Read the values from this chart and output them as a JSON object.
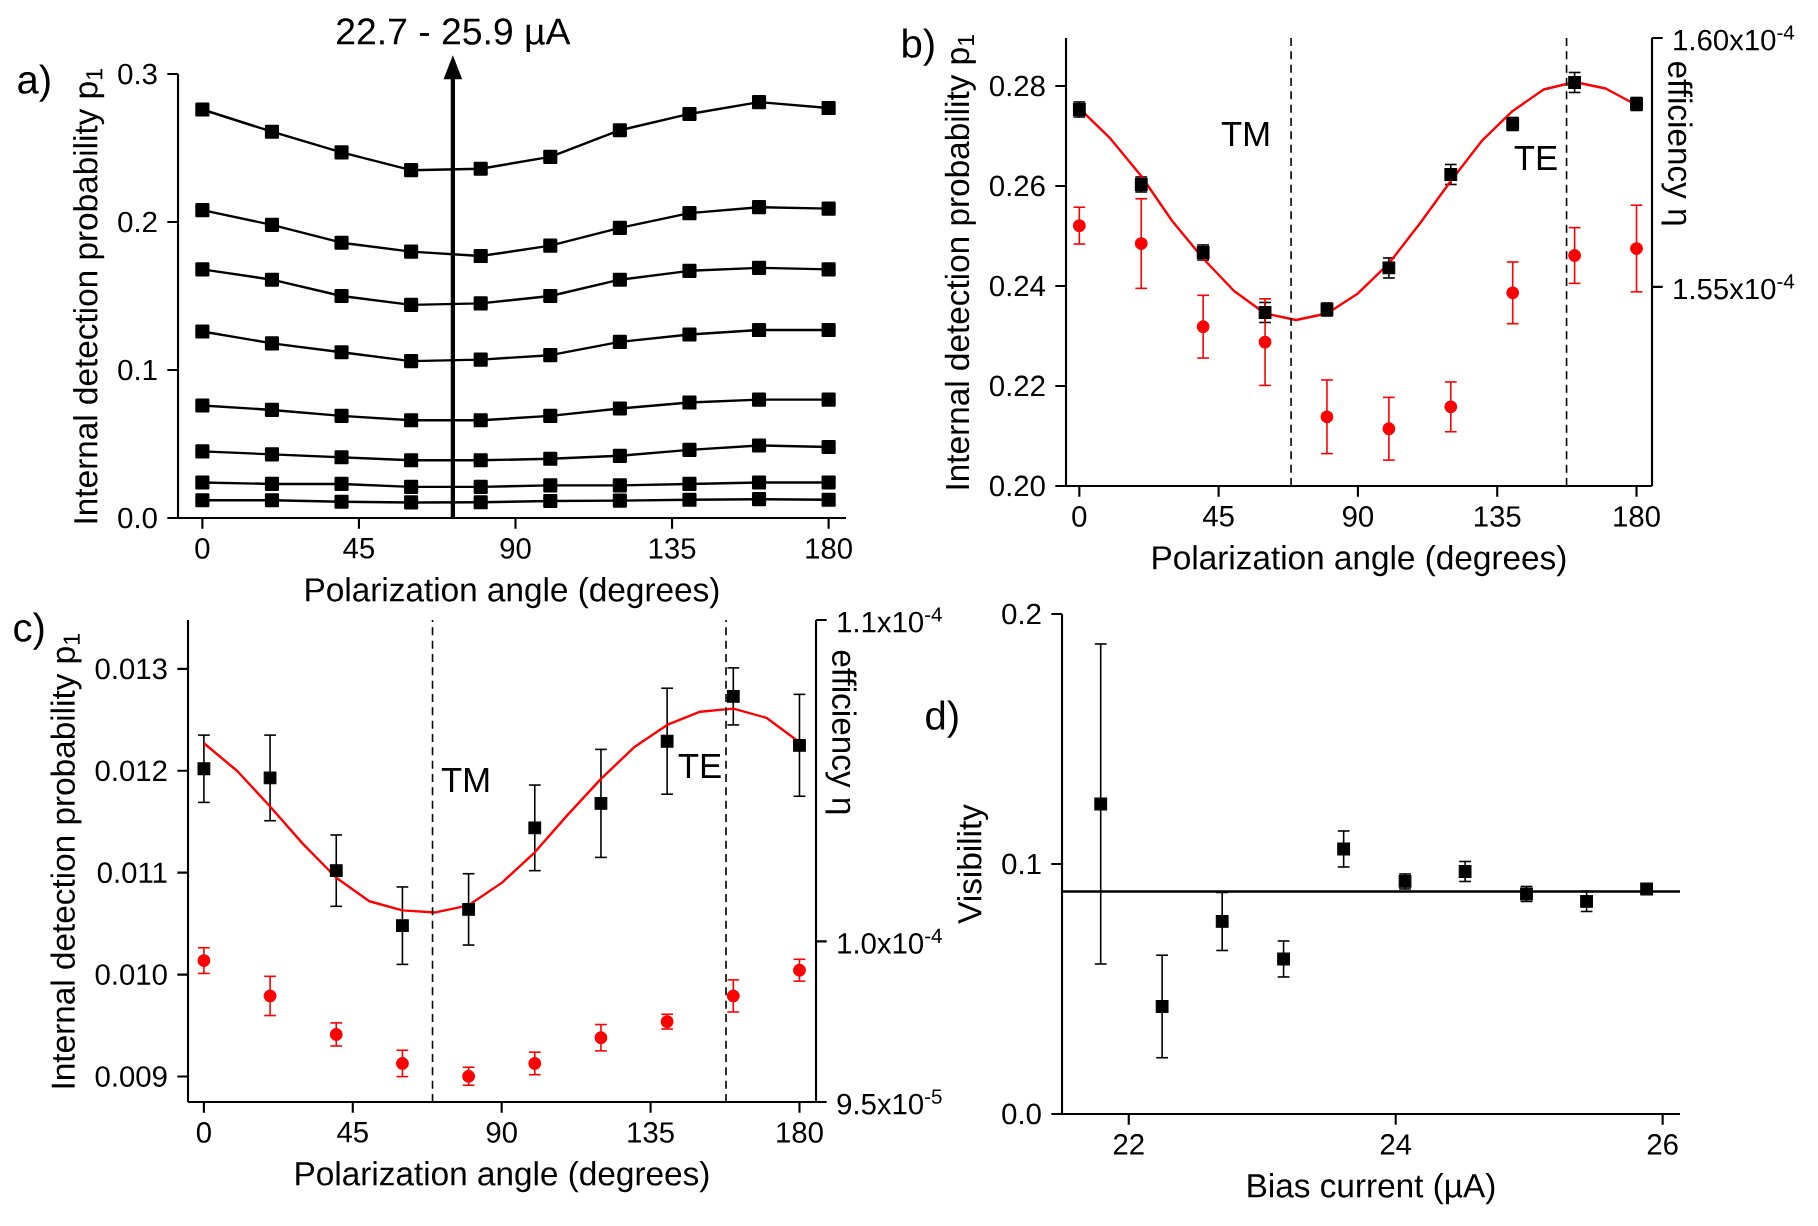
{
  "chart_data": [
    {
      "type": "line",
      "xlabel": "Polarization angle (degrees)",
      "ylabel": "Internal detection probability p$_{1}$",
      "x": [
        0,
        20,
        40,
        60,
        80,
        100,
        120,
        140,
        160,
        180
      ],
      "marker": "square",
      "xlim": [
        -7,
        185
      ],
      "ylim": [
        0,
        0.3
      ],
      "xticks": [
        0,
        45,
        90,
        135,
        180
      ],
      "yticks": [
        {
          "value": 0,
          "label": "0.0"
        },
        0.1,
        0.2,
        0.3
      ],
      "series": [
        {
          "color": "#000000",
          "values": [
            0.276,
            0.261,
            0.247,
            0.235,
            0.236,
            0.244,
            0.262,
            0.273,
            0.281,
            0.277
          ]
        },
        {
          "color": "#000000",
          "values": [
            0.208,
            0.198,
            0.186,
            0.18,
            0.177,
            0.184,
            0.196,
            0.206,
            0.21,
            0.209
          ]
        },
        {
          "color": "#000000",
          "values": [
            0.168,
            0.161,
            0.15,
            0.144,
            0.145,
            0.15,
            0.161,
            0.167,
            0.169,
            0.168
          ]
        },
        {
          "color": "#000000",
          "values": [
            0.126,
            0.118,
            0.112,
            0.106,
            0.107,
            0.11,
            0.119,
            0.124,
            0.127,
            0.127
          ]
        },
        {
          "color": "#000000",
          "values": [
            0.076,
            0.073,
            0.069,
            0.066,
            0.066,
            0.069,
            0.074,
            0.078,
            0.08,
            0.08
          ]
        },
        {
          "color": "#000000",
          "values": [
            0.045,
            0.043,
            0.041,
            0.039,
            0.039,
            0.04,
            0.042,
            0.046,
            0.049,
            0.048
          ]
        },
        {
          "color": "#000000",
          "values": [
            0.024,
            0.023,
            0.023,
            0.021,
            0.021,
            0.022,
            0.022,
            0.023,
            0.024,
            0.024
          ]
        },
        {
          "color": "#000000",
          "values": [
            0.012,
            0.012,
            0.011,
            0.0105,
            0.0106,
            0.0115,
            0.0117,
            0.0123,
            0.0127,
            0.0123
          ]
        }
      ],
      "ref_lines": [
        {
          "axis": "x",
          "value": 72,
          "label": "22.7 - 25.9 µA"
        }
      ],
      "annotations": [
        "a)"
      ]
    },
    {
      "type": "scatter",
      "xlabel": "Polarization angle (degrees)",
      "ylabel": "Internal detection probability p$_{1}$",
      "y2label": "efficiency η",
      "x": [
        0,
        20,
        40,
        60,
        80,
        100,
        120,
        140,
        160,
        180
      ],
      "xlim": [
        -4.3,
        185
      ],
      "ylim": [
        0.2,
        0.2896
      ],
      "y2lim": [
        0.000151,
        0.00016
      ],
      "xticks": [
        0,
        45,
        90,
        135,
        180
      ],
      "yticks": [
        {
          "value": 0.2,
          "label": "0.20"
        },
        0.22,
        0.24,
        0.26,
        0.28
      ],
      "y2ticks": [
        {
          "value": 0.000155,
          "label": "1.55x10$^{-4}$"
        },
        {
          "value": 0.00016,
          "label": "1.60x10$^{-4}$"
        }
      ],
      "series": [
        {
          "type": "scatter",
          "marker": "square",
          "color": "#000000",
          "values": [
            0.2753,
            0.2603,
            0.2467,
            0.2347,
            0.2353,
            0.2436,
            0.2623,
            0.2724,
            0.2807,
            0.2764
          ],
          "errors": [
            0.0015,
            0.0015,
            0.0015,
            0.002,
            0.0013,
            0.002,
            0.002,
            0.0013,
            0.002,
            0.0013
          ]
        },
        {
          "type": "line",
          "marker": "none",
          "color": "#ff0000",
          "x": [
            0,
            10,
            20,
            30,
            40,
            50,
            60,
            70,
            80,
            90,
            100,
            110,
            120,
            130,
            140,
            150,
            160,
            170,
            180
          ],
          "values": [
            0.2755,
            0.2695,
            0.262,
            0.253,
            0.2455,
            0.239,
            0.2345,
            0.2332,
            0.2345,
            0.2385,
            0.2445,
            0.2525,
            0.261,
            0.269,
            0.275,
            0.2793,
            0.2808,
            0.2795,
            0.2762
          ]
        },
        {
          "type": "scatter",
          "marker": "circle",
          "axis": "y2",
          "color": "#ff0000",
          "values": [
            0.00015623,
            0.00015587,
            0.0001542,
            0.00015389,
            0.00015239,
            0.00015215,
            0.00015259,
            0.00015488,
            0.00015563,
            0.00015577
          ],
          "errors": [
            3.7e-07,
            9e-07,
            6.3e-07,
            8.7e-07,
            7.4e-07,
            6.3e-07,
            5e-07,
            6.2e-07,
            5.6e-07,
            8.7e-07
          ]
        }
      ],
      "ref_lines": [
        {
          "axis": "x",
          "value": 68.4,
          "line_style": "dashed"
        },
        {
          "axis": "x",
          "value": 157.4,
          "line_style": "dashed"
        }
      ],
      "annotations": [
        "b)",
        "TM",
        "TE"
      ]
    },
    {
      "type": "scatter",
      "xlabel": "Polarization angle (degrees)",
      "ylabel": "Internal detection probability p$_{1}$",
      "y2label": "efficiency η",
      "x": [
        0,
        20,
        40,
        60,
        80,
        100,
        120,
        140,
        160,
        180
      ],
      "xlim": [
        -4.8,
        185
      ],
      "ylim": [
        0.00875,
        0.01348
      ],
      "y2lim": [
        9.5e-05,
        0.00011
      ],
      "xticks": [
        0,
        45,
        90,
        135,
        180
      ],
      "yticks": [
        0.009,
        {
          "value": 0.01,
          "label": "0.010"
        },
        0.011,
        0.012,
        0.013
      ],
      "y2ticks": [
        {
          "value": 9.5e-05,
          "label": "9.5x10$^{-5}$"
        },
        {
          "value": 0.0001,
          "label": "1.0x10$^{-4}$"
        },
        {
          "value": 0.00011,
          "label": "1.1x10$^{-4}$"
        }
      ],
      "series": [
        {
          "type": "scatter",
          "marker": "square",
          "color": "#000000",
          "values": [
            0.01202,
            0.01193,
            0.01102,
            0.01048,
            0.01064,
            0.01144,
            0.01168,
            0.01229,
            0.01273,
            0.01225
          ],
          "errors": [
            0.00033,
            0.00042,
            0.00035,
            0.00038,
            0.00035,
            0.00042,
            0.00053,
            0.00052,
            0.00028,
            0.0005
          ]
        },
        {
          "type": "line",
          "marker": "none",
          "color": "#ff0000",
          "x": [
            0,
            10,
            20,
            30,
            40,
            50,
            60,
            70,
            80,
            90,
            100,
            110,
            120,
            130,
            140,
            150,
            160,
            170,
            180
          ],
          "values": [
            0.01227,
            0.012,
            0.01165,
            0.01128,
            0.01095,
            0.01072,
            0.01063,
            0.01061,
            0.01068,
            0.0109,
            0.0112,
            0.01157,
            0.01192,
            0.01223,
            0.01245,
            0.01258,
            0.01261,
            0.01252,
            0.01228
          ]
        },
        {
          "type": "scatter",
          "marker": "circle",
          "axis": "y2",
          "color": "#ff0000",
          "values": [
            9.94e-05,
            9.83e-05,
            9.71e-05,
            9.62e-05,
            9.58e-05,
            9.62e-05,
            9.7e-05,
            9.75e-05,
            9.83e-05,
            9.91e-05
          ],
          "errors": [
            4e-07,
            6.1e-07,
            3.6e-07,
            4.1e-07,
            2.8e-07,
            3.5e-07,
            4.1e-07,
            2.3e-07,
            5e-07,
            3.4e-07
          ]
        }
      ],
      "ref_lines": [
        {
          "axis": "x",
          "value": 69.1,
          "line_style": "dashed"
        },
        {
          "axis": "x",
          "value": 157.8,
          "line_style": "dashed"
        }
      ],
      "annotations": [
        "c)",
        "TM",
        "TE"
      ]
    },
    {
      "type": "scatter",
      "xlabel": "Bias current (µA)",
      "ylabel": "Visibility",
      "marker": "square",
      "xlim": [
        21.5,
        26.13
      ],
      "ylim": [
        0,
        0.2
      ],
      "xticks": [
        22,
        24,
        26
      ],
      "yticks": [
        {
          "value": 0,
          "label": "0.0"
        },
        0.1,
        0.2
      ],
      "x": [
        21.79,
        22.25,
        22.7,
        23.16,
        23.61,
        24.07,
        24.52,
        24.98,
        25.43,
        25.88
      ],
      "values": [
        0.124,
        0.043,
        0.077,
        0.062,
        0.106,
        0.093,
        0.097,
        0.088,
        0.085,
        0.09
      ],
      "color": "#000000",
      "errors": [
        0.064,
        0.0205,
        0.0116,
        0.0072,
        0.0072,
        0.003,
        0.004,
        0.003,
        0.004,
        0.0017
      ],
      "ref_lines": [
        {
          "axis": "y",
          "value": 0.089
        }
      ],
      "annotations": [
        "d)"
      ]
    }
  ]
}
